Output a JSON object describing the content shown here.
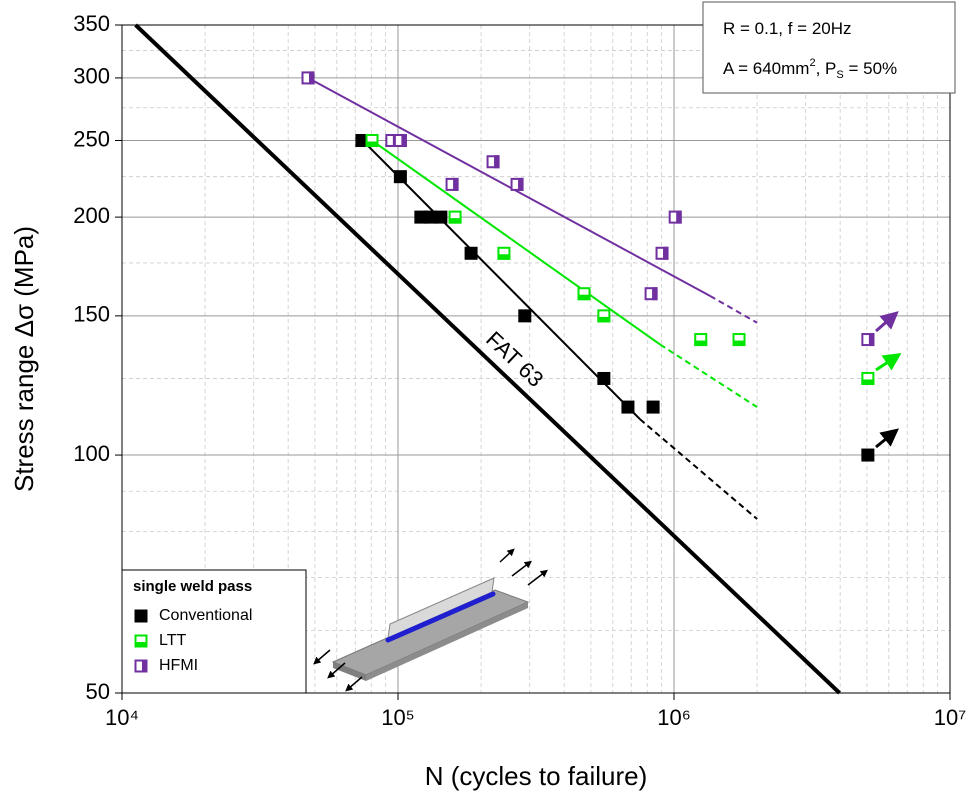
{
  "chart_data": {
    "type": "scatter",
    "xlabel": "N (cycles to failure)",
    "ylabel": "Stress range Δσ (MPa)",
    "xscale": "log",
    "yscale": "log",
    "xlim": [
      10000,
      10000000
    ],
    "ylim": [
      50,
      350
    ],
    "xticks": [
      {
        "value": 10000,
        "label": "10⁴"
      },
      {
        "value": 100000,
        "label": "10⁵"
      },
      {
        "value": 1000000,
        "label": "10⁶"
      },
      {
        "value": 10000000,
        "label": "10⁷"
      }
    ],
    "yticks": [
      50,
      100,
      150,
      200,
      250,
      300,
      350
    ],
    "grid": true,
    "legend_title": "single weld pass",
    "legend_position": "lower left",
    "annotations": [
      [
        "R = 0.1, f = 20Hz"
      ],
      [
        "A = 640mm",
        {
          "sup": "2"
        },
        ", P",
        {
          "sub": "S"
        },
        " = 50%"
      ]
    ],
    "reference_line": {
      "name": "FAT 63",
      "color": "#000000",
      "x": [
        11200,
        3980000
      ],
      "values": [
        350,
        50
      ]
    },
    "series": [
      {
        "name": "Conventional",
        "color": "#000000",
        "marker_fill": "full",
        "x": [
          74000,
          102000,
          121000,
          131000,
          143000,
          184000,
          288000,
          557000,
          681000,
          840000,
          5040000
        ],
        "values": [
          250,
          225,
          200,
          200,
          200,
          180,
          150,
          125,
          115,
          115,
          100
        ],
        "fit": {
          "x": [
            72000,
            753000
          ],
          "values": [
            253,
            111
          ]
        },
        "extrapolation": {
          "x": [
            753000,
            2000000
          ],
          "values": [
            111,
            83
          ]
        }
      },
      {
        "name": "LTT",
        "color": "#00e600",
        "marker_fill": "bottom",
        "x": [
          80500,
          161000,
          242000,
          472000,
          557000,
          1250000,
          1720000,
          5040000
        ],
        "values": [
          250,
          200,
          180,
          160,
          150,
          140,
          140,
          125
        ],
        "fit": {
          "x": [
            80500,
            890000
          ],
          "values": [
            250,
            138
          ]
        },
        "extrapolation": {
          "x": [
            890000,
            2000000
          ],
          "values": [
            138,
            115
          ]
        }
      },
      {
        "name": "HFMI",
        "color": "#7030a0",
        "marker_fill": "right",
        "x": [
          47200,
          95000,
          102000,
          157000,
          221000,
          270000,
          826000,
          905000,
          1010000,
          5040000
        ],
        "values": [
          300,
          250,
          250,
          220,
          235,
          220,
          160,
          180,
          200,
          140
        ],
        "fit": {
          "x": [
            47200,
            1350000
          ],
          "values": [
            300,
            159
          ]
        },
        "extrapolation": {
          "x": [
            1350000,
            2000000
          ],
          "values": [
            159,
            147
          ]
        }
      }
    ]
  }
}
